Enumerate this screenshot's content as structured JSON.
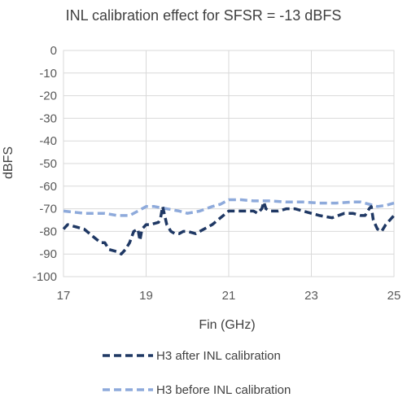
{
  "chart_data": {
    "type": "line",
    "title": "INL calibration effect for SFSR =  -13 dBFS",
    "xlabel": "Fin (GHz)",
    "ylabel": "dBFS",
    "xlim": [
      17,
      25
    ],
    "ylim": [
      -100,
      0
    ],
    "xticks": [
      17,
      19,
      21,
      23,
      25
    ],
    "yticks": [
      0,
      -10,
      -20,
      -30,
      -40,
      -50,
      -60,
      -70,
      -80,
      -90,
      -100
    ],
    "grid": true,
    "legend": "bottom",
    "series": [
      {
        "name": "H3 after INL calibration",
        "color": "#1f3864",
        "style": "dashed",
        "x": [
          17.0,
          17.1,
          17.3,
          17.5,
          17.7,
          17.9,
          18.0,
          18.1,
          18.3,
          18.4,
          18.5,
          18.6,
          18.7,
          18.8,
          18.85,
          18.9,
          19.0,
          19.1,
          19.3,
          19.35,
          19.4,
          19.5,
          19.6,
          19.7,
          19.8,
          19.9,
          20.0,
          20.2,
          20.4,
          20.6,
          20.8,
          21.0,
          21.2,
          21.4,
          21.6,
          21.7,
          21.8,
          21.85,
          21.9,
          22.0,
          22.2,
          22.4,
          22.6,
          22.8,
          23.0,
          23.2,
          23.5,
          23.8,
          24.0,
          24.2,
          24.3,
          24.4,
          24.45,
          24.5,
          24.6,
          24.7,
          24.8,
          24.9,
          25.0
        ],
        "values": [
          -79,
          -77,
          -78,
          -79,
          -82,
          -85,
          -85,
          -88,
          -89,
          -90,
          -88,
          -85,
          -80,
          -79,
          -84,
          -79,
          -77,
          -77,
          -76,
          -74,
          -69,
          -77,
          -80,
          -81,
          -81,
          -80,
          -80,
          -81,
          -79,
          -77,
          -74,
          -71,
          -71,
          -71,
          -71,
          -72,
          -70,
          -67,
          -70,
          -71,
          -71,
          -70,
          -70,
          -71,
          -72,
          -73,
          -74,
          -72,
          -72,
          -73,
          -73,
          -70,
          -69,
          -75,
          -79,
          -80,
          -77,
          -75,
          -73
        ]
      },
      {
        "name": "H3 before INL calibration",
        "color": "#8eaadb",
        "style": "dashed",
        "x": [
          17.0,
          17.5,
          18.0,
          18.3,
          18.6,
          18.8,
          19.0,
          19.2,
          19.5,
          19.8,
          20.0,
          20.3,
          20.6,
          20.8,
          21.0,
          21.3,
          21.6,
          22.0,
          22.4,
          22.8,
          23.2,
          23.6,
          24.0,
          24.2,
          24.4,
          24.6,
          24.8,
          25.0
        ],
        "values": [
          -71,
          -72,
          -72,
          -73,
          -73,
          -71,
          -69,
          -69,
          -70,
          -71,
          -72,
          -71,
          -69,
          -68,
          -66,
          -66,
          -66.5,
          -66.5,
          -67,
          -67,
          -67.5,
          -67.5,
          -67,
          -67,
          -68,
          -69,
          -68.5,
          -67.5
        ]
      }
    ]
  }
}
